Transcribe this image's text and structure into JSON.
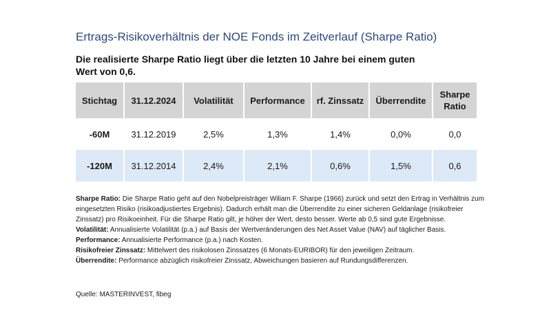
{
  "title": "Ertrags-Risikoverhältnis der NOE Fonds im Zeitverlauf (Sharpe Ratio)",
  "subtitle": "Die realisierte Sharpe Ratio liegt über die letzten 10 Jahre bei einem guten Wert von 0,6.",
  "table": {
    "headers": [
      "Stichtag",
      "31.12.2024",
      "Volatilität",
      "Performance",
      "rf. Zinssatz",
      "Überrendite",
      "Sharpe Ratio"
    ],
    "rows": [
      [
        "-60M",
        "31.12.2019",
        "2,5%",
        "1,3%",
        "1,4%",
        "0,0%",
        "0,0"
      ],
      [
        "-120M",
        "31.12.2014",
        "2,4%",
        "2,1%",
        "0,6%",
        "1,5%",
        "0,6"
      ]
    ]
  },
  "notes": [
    {
      "term": "Sharpe Ratio:",
      "text": " Die Sharpe Ratio geht auf den Nobelpreisträger Wiliam F. Sharpe (1966) zurück und setzt den Ertrag in Verhältnis zum eingesetzten Risiko (risikoadjustiertes Ergebnis). Dadurch erhält man die Überrendite zu einer sicheren Geldanlage (risikofreier Zinssatz) pro Risikoeinheit. Für die Sharpe Ratio gilt, je höher der Wert, desto besser. Werte ab 0,5 sind gute Ergebnisse."
    },
    {
      "term": "Volatilität:",
      "text": " Annualisierte Volatilität (p.a.) auf Basis der Wertveränderungen des Net Asset Value (NAV) auf täglicher Basis."
    },
    {
      "term": "Performance:",
      "text": " Annualisierte Performance (p.a.) nach Kosten."
    },
    {
      "term": "Risikofreier Zinssatz:",
      "text": " Mittelwert des risikolosen Zinssatzes (6 Monats-EURIBOR) für den jeweiligen Zeitraum."
    },
    {
      "term": "Überrendite:",
      "text": " Performance abzüglich risikofreier Zinssatz, Abweichungen basieren auf Rundungsdifferenzen."
    }
  ],
  "source": "Quelle: MASTERINVEST, fibeg",
  "colors": {
    "title": "#2b4a7e",
    "header_bg": "#d4d4d4",
    "row_highlight_bg": "#dde9f6"
  }
}
